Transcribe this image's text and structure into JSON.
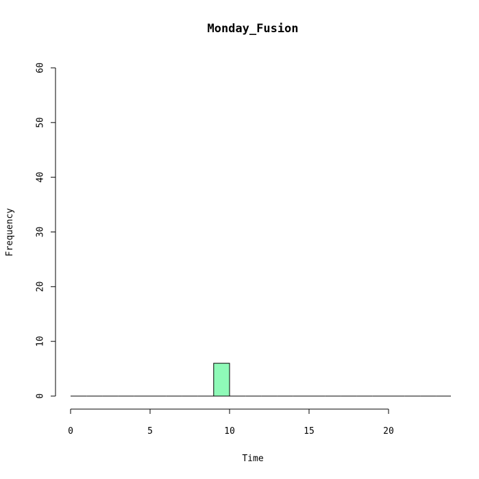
{
  "chart_data": {
    "type": "bar",
    "title": "Monday_Fusion",
    "xlabel": "Time",
    "ylabel": "Frequency",
    "xlim": [
      0,
      24
    ],
    "ylim": [
      0,
      60
    ],
    "x_ticks": [
      0,
      5,
      10,
      15,
      20
    ],
    "y_ticks": [
      0,
      10,
      20,
      30,
      40,
      50,
      60
    ],
    "bin_edges": [
      0,
      1,
      2,
      3,
      4,
      5,
      6,
      7,
      8,
      9,
      10,
      11,
      12,
      13,
      14,
      15,
      16,
      17,
      18,
      19,
      20,
      21,
      22,
      23,
      24
    ],
    "values": [
      0,
      0,
      0,
      0,
      0,
      0,
      0,
      0,
      0,
      6,
      0,
      0,
      0,
      0,
      0,
      0,
      0,
      0,
      0,
      0,
      0,
      0,
      0,
      0
    ],
    "bar_color": "#8ffab8",
    "grid": false
  }
}
